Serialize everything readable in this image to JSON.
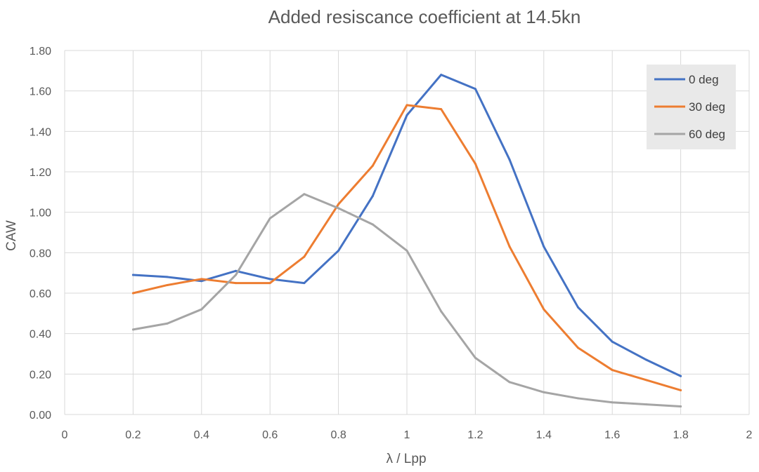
{
  "chart_data": {
    "type": "line",
    "title": "Added resiscance coefficient at 14.5kn",
    "xlabel": "λ / Lpp",
    "ylabel": "CAW",
    "xlim": [
      0,
      2
    ],
    "ylim": [
      0,
      1.8
    ],
    "x_ticks": [
      "0",
      "0.2",
      "0.4",
      "0.6",
      "0.8",
      "1",
      "1.2",
      "1.4",
      "1.6",
      "1.8",
      "2"
    ],
    "y_ticks": [
      "0.00",
      "0.20",
      "0.40",
      "0.60",
      "0.80",
      "1.00",
      "1.20",
      "1.40",
      "1.60",
      "1.80"
    ],
    "grid": true,
    "legend_position": "top-right",
    "x": [
      0.2,
      0.3,
      0.4,
      0.5,
      0.6,
      0.7,
      0.8,
      0.9,
      1.0,
      1.1,
      1.2,
      1.3,
      1.4,
      1.5,
      1.6,
      1.7,
      1.8
    ],
    "series": [
      {
        "name": "0 deg",
        "color": "#4472C4",
        "values": [
          0.69,
          0.68,
          0.66,
          0.71,
          0.67,
          0.65,
          0.81,
          1.08,
          1.48,
          1.68,
          1.61,
          1.26,
          0.83,
          0.53,
          0.36,
          0.27,
          0.19
        ]
      },
      {
        "name": "30 deg",
        "color": "#ED7D31",
        "values": [
          0.6,
          0.64,
          0.67,
          0.65,
          0.65,
          0.78,
          1.04,
          1.23,
          1.53,
          1.51,
          1.24,
          0.83,
          0.52,
          0.33,
          0.22,
          0.17,
          0.12
        ]
      },
      {
        "name": "60 deg",
        "color": "#A5A5A5",
        "values": [
          0.42,
          0.45,
          0.52,
          0.69,
          0.97,
          1.09,
          1.02,
          0.94,
          0.81,
          0.51,
          0.28,
          0.16,
          0.11,
          0.08,
          0.06,
          0.05,
          0.04
        ]
      }
    ]
  }
}
